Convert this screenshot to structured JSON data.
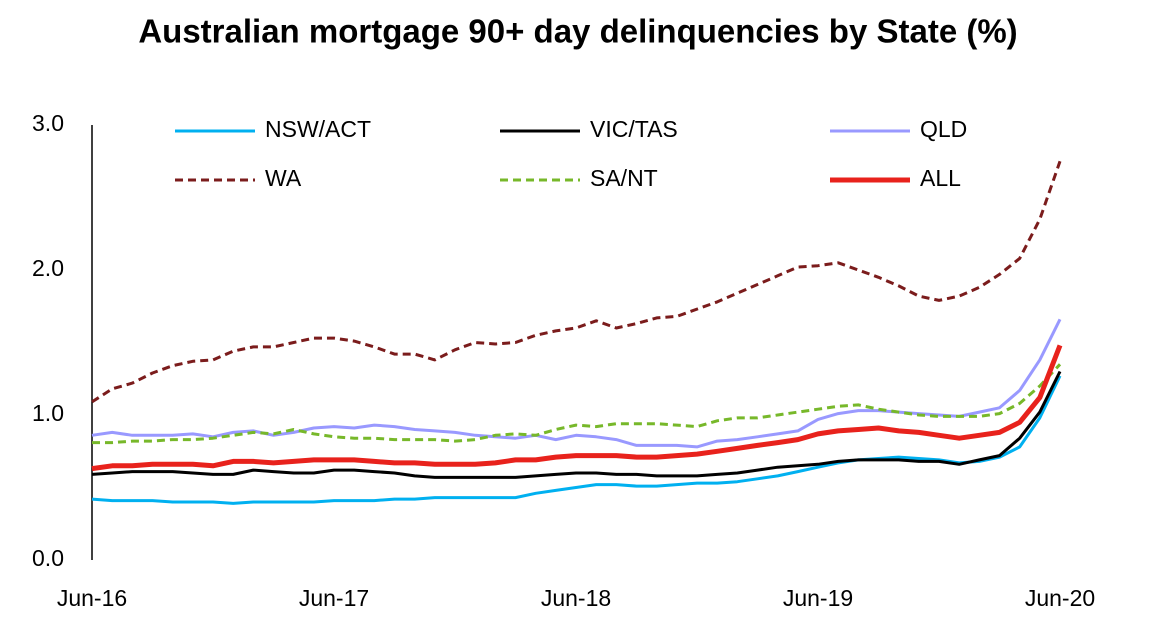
{
  "chart_data": {
    "type": "line",
    "title": "Australian mortgage 90+ day delinquencies by State (%)",
    "categories": [
      "Jun-16",
      null,
      null,
      null,
      null,
      null,
      null,
      null,
      null,
      null,
      null,
      null,
      "Jun-17",
      null,
      null,
      null,
      null,
      null,
      null,
      null,
      null,
      null,
      null,
      null,
      "Jun-18",
      null,
      null,
      null,
      null,
      null,
      null,
      null,
      null,
      null,
      null,
      null,
      "Jun-19",
      null,
      null,
      null,
      null,
      null,
      null,
      null,
      null,
      null,
      null,
      null,
      "Jun-20"
    ],
    "ylim": [
      0,
      3
    ],
    "yticks": [
      {
        "value": 0,
        "label": "0.0"
      },
      {
        "value": 1,
        "label": "1.0"
      },
      {
        "value": 2,
        "label": "2.0"
      },
      {
        "value": 3,
        "label": "3.0"
      }
    ],
    "grid": false,
    "legend": "top",
    "series": [
      {
        "name": "NSW/ACT",
        "color": "#00b0f0",
        "dash": false,
        "width": 3,
        "values": [
          0.42,
          0.41,
          0.41,
          0.41,
          0.4,
          0.4,
          0.4,
          0.39,
          0.4,
          0.4,
          0.4,
          0.4,
          0.41,
          0.41,
          0.41,
          0.42,
          0.42,
          0.43,
          0.43,
          0.43,
          0.43,
          0.43,
          0.46,
          0.48,
          0.5,
          0.52,
          0.52,
          0.51,
          0.51,
          0.52,
          0.53,
          0.53,
          0.54,
          0.56,
          0.58,
          0.61,
          0.64,
          0.67,
          0.69,
          0.7,
          0.71,
          0.7,
          0.69,
          0.67,
          0.68,
          0.71,
          0.78,
          0.98,
          1.27
        ]
      },
      {
        "name": "VIC/TAS",
        "color": "#000000",
        "dash": false,
        "width": 3,
        "values": [
          0.59,
          0.6,
          0.61,
          0.61,
          0.61,
          0.6,
          0.59,
          0.59,
          0.62,
          0.61,
          0.6,
          0.6,
          0.62,
          0.62,
          0.61,
          0.6,
          0.58,
          0.57,
          0.57,
          0.57,
          0.57,
          0.57,
          0.58,
          0.59,
          0.6,
          0.6,
          0.59,
          0.59,
          0.58,
          0.58,
          0.58,
          0.59,
          0.6,
          0.62,
          0.64,
          0.65,
          0.66,
          0.68,
          0.69,
          0.69,
          0.69,
          0.68,
          0.68,
          0.66,
          0.69,
          0.72,
          0.84,
          1.02,
          1.3
        ]
      },
      {
        "name": "QLD",
        "color": "#9999ff",
        "dash": false,
        "width": 3,
        "values": [
          0.86,
          0.88,
          0.86,
          0.86,
          0.86,
          0.87,
          0.85,
          0.88,
          0.89,
          0.86,
          0.88,
          0.91,
          0.92,
          0.91,
          0.93,
          0.92,
          0.9,
          0.89,
          0.88,
          0.86,
          0.85,
          0.84,
          0.86,
          0.83,
          0.86,
          0.85,
          0.83,
          0.79,
          0.79,
          0.79,
          0.78,
          0.82,
          0.83,
          0.85,
          0.87,
          0.89,
          0.97,
          1.01,
          1.03,
          1.03,
          1.02,
          1.01,
          1.0,
          0.99,
          1.02,
          1.05,
          1.17,
          1.38,
          1.66
        ]
      },
      {
        "name": "WA",
        "color": "#7b1c1c",
        "dash": true,
        "width": 3,
        "values": [
          1.09,
          1.18,
          1.22,
          1.29,
          1.34,
          1.37,
          1.38,
          1.44,
          1.47,
          1.47,
          1.5,
          1.53,
          1.53,
          1.51,
          1.47,
          1.42,
          1.42,
          1.38,
          1.45,
          1.5,
          1.49,
          1.5,
          1.55,
          1.58,
          1.6,
          1.65,
          1.6,
          1.63,
          1.67,
          1.68,
          1.73,
          1.78,
          1.84,
          1.9,
          1.96,
          2.02,
          2.03,
          2.05,
          2.0,
          1.95,
          1.89,
          1.82,
          1.79,
          1.82,
          1.88,
          1.97,
          2.08,
          2.35,
          2.75
        ]
      },
      {
        "name": "SA/NT",
        "color": "#77b82a",
        "dash": true,
        "width": 3,
        "values": [
          0.81,
          0.81,
          0.82,
          0.82,
          0.83,
          0.83,
          0.84,
          0.86,
          0.88,
          0.87,
          0.9,
          0.87,
          0.85,
          0.84,
          0.84,
          0.83,
          0.83,
          0.83,
          0.82,
          0.83,
          0.86,
          0.87,
          0.86,
          0.9,
          0.93,
          0.92,
          0.94,
          0.94,
          0.94,
          0.93,
          0.92,
          0.96,
          0.98,
          0.98,
          1.0,
          1.02,
          1.04,
          1.06,
          1.07,
          1.04,
          1.02,
          1.0,
          0.99,
          0.99,
          0.99,
          1.01,
          1.08,
          1.2,
          1.35
        ]
      },
      {
        "name": "ALL",
        "color": "#e8221c",
        "dash": false,
        "width": 5,
        "values": [
          0.63,
          0.65,
          0.65,
          0.66,
          0.66,
          0.66,
          0.65,
          0.68,
          0.68,
          0.67,
          0.68,
          0.69,
          0.69,
          0.69,
          0.68,
          0.67,
          0.67,
          0.66,
          0.66,
          0.66,
          0.67,
          0.69,
          0.69,
          0.71,
          0.72,
          0.72,
          0.72,
          0.71,
          0.71,
          0.72,
          0.73,
          0.75,
          0.77,
          0.79,
          0.81,
          0.83,
          0.87,
          0.89,
          0.9,
          0.91,
          0.89,
          0.88,
          0.86,
          0.84,
          0.86,
          0.88,
          0.95,
          1.12,
          1.48
        ]
      }
    ]
  }
}
